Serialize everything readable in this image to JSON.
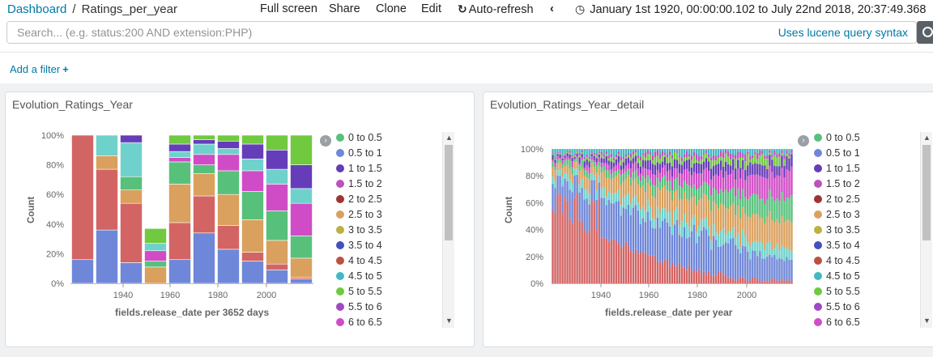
{
  "breadcrumb": {
    "root": "Dashboard",
    "current": "Ratings_per_year"
  },
  "top_menu": {
    "full_screen": "Full screen",
    "share": "Share",
    "clone": "Clone",
    "edit": "Edit",
    "auto_refresh": "Auto-refresh",
    "time_range": "January 1st 1920, 00:00:00.102 to July 22nd 2018, 20:37:49.368",
    "icons": {
      "refresh": "refresh-icon",
      "back": "chevron-left-icon",
      "clock": "clock-icon"
    }
  },
  "search": {
    "placeholder": "Search... (e.g. status:200 AND extension:PHP)",
    "syntax_link": "Uses lucene query syntax"
  },
  "filter": {
    "add_label": "Add a filter"
  },
  "colors": {
    "link": "#0079a5"
  },
  "legend_items": [
    {
      "label": "0 to 0.5",
      "color": "#57c17b"
    },
    {
      "label": "0.5 to 1",
      "color": "#6f87d8"
    },
    {
      "label": "1 to 1.5",
      "color": "#663db8"
    },
    {
      "label": "1.5 to 2",
      "color": "#bc52bc"
    },
    {
      "label": "2 to 2.5",
      "color": "#9e3533"
    },
    {
      "label": "2.5 to 3",
      "color": "#daa05d"
    },
    {
      "label": "3 to 3.5",
      "color": "#bfaf40"
    },
    {
      "label": "3.5 to 4",
      "color": "#4050bf"
    },
    {
      "label": "4 to 4.5",
      "color": "#bf5040"
    },
    {
      "label": "4.5 to 5",
      "color": "#40b9c4"
    },
    {
      "label": "5 to 5.5",
      "color": "#70c93f"
    },
    {
      "label": "5.5 to 6",
      "color": "#a048c6"
    },
    {
      "label": "6 to 6.5",
      "color": "#d04cc6"
    }
  ],
  "panels": [
    {
      "title": "Evolution_Ratings_Year",
      "y_label": "Count",
      "x_label": "fields.release_date per 3652 days"
    },
    {
      "title": "Evolution_Ratings_Year_detail",
      "y_label": "Count",
      "x_label": "fields.release_date per year"
    }
  ],
  "chart_data": [
    {
      "type": "bar",
      "stacked": "percentage",
      "title": "Evolution_Ratings_Year",
      "xlabel": "fields.release_date per 3652 days",
      "ylabel": "Count",
      "x_ticks": [
        "1940",
        "1960",
        "1980",
        "2000"
      ],
      "y_ticks": [
        "0%",
        "20%",
        "40%",
        "60%",
        "80%",
        "100%"
      ],
      "categories": [
        1920,
        1930,
        1940,
        1950,
        1960,
        1970,
        1980,
        1990,
        2000,
        2010
      ],
      "series": [
        {
          "name": "0.5 to 1",
          "color": "#6f87d8",
          "values": [
            0.16,
            0.36,
            0.14,
            0.0,
            0.16,
            0.34,
            0.23,
            0.15,
            0.09,
            0.03
          ]
        },
        {
          "name": "2 to 2.5",
          "color": "#d36464",
          "values": [
            0.84,
            0.41,
            0.4,
            0.0,
            0.25,
            0.25,
            0.16,
            0.06,
            0.04,
            0.01
          ]
        },
        {
          "name": "2.5 to 3",
          "color": "#daa05d",
          "values": [
            0.0,
            0.09,
            0.09,
            0.11,
            0.26,
            0.15,
            0.21,
            0.22,
            0.16,
            0.13
          ]
        },
        {
          "name": "0 to 0.5",
          "color": "#57c17b",
          "values": [
            0.0,
            0.0,
            0.09,
            0.04,
            0.15,
            0.06,
            0.16,
            0.19,
            0.2,
            0.15
          ]
        },
        {
          "name": "6 to 6.5",
          "color": "#d04cc6",
          "values": [
            0.0,
            0.0,
            0.0,
            0.07,
            0.03,
            0.07,
            0.11,
            0.14,
            0.18,
            0.22
          ]
        },
        {
          "name": "4.5 to 5",
          "color": "#6fd1cc",
          "values": [
            0.0,
            0.14,
            0.23,
            0.05,
            0.04,
            0.07,
            0.04,
            0.08,
            0.1,
            0.1
          ]
        },
        {
          "name": "1 to 1.5",
          "color": "#663db8",
          "values": [
            0.0,
            0.0,
            0.05,
            0.0,
            0.05,
            0.03,
            0.05,
            0.1,
            0.13,
            0.16
          ]
        },
        {
          "name": "5 to 5.5",
          "color": "#70c93f",
          "values": [
            0.0,
            0.0,
            0.0,
            0.1,
            0.06,
            0.03,
            0.04,
            0.06,
            0.1,
            0.2
          ]
        }
      ]
    },
    {
      "type": "bar",
      "stacked": "percentage",
      "title": "Evolution_Ratings_Year_detail",
      "xlabel": "fields.release_date per year",
      "ylabel": "Count",
      "x_ticks": [
        "1940",
        "1960",
        "1980",
        "2000"
      ],
      "y_ticks": [
        "0%",
        "20%",
        "40%",
        "60%",
        "80%",
        "100%"
      ],
      "x_range": [
        1920,
        2018
      ],
      "series_names": [
        "0 to 0.5",
        "0.5 to 1",
        "1 to 1.5",
        "1.5 to 2",
        "2 to 2.5",
        "2.5 to 3",
        "3 to 3.5",
        "3.5 to 4",
        "4 to 4.5",
        "4.5 to 5",
        "5 to 5.5",
        "5.5 to 6",
        "6 to 6.5"
      ]
    }
  ]
}
